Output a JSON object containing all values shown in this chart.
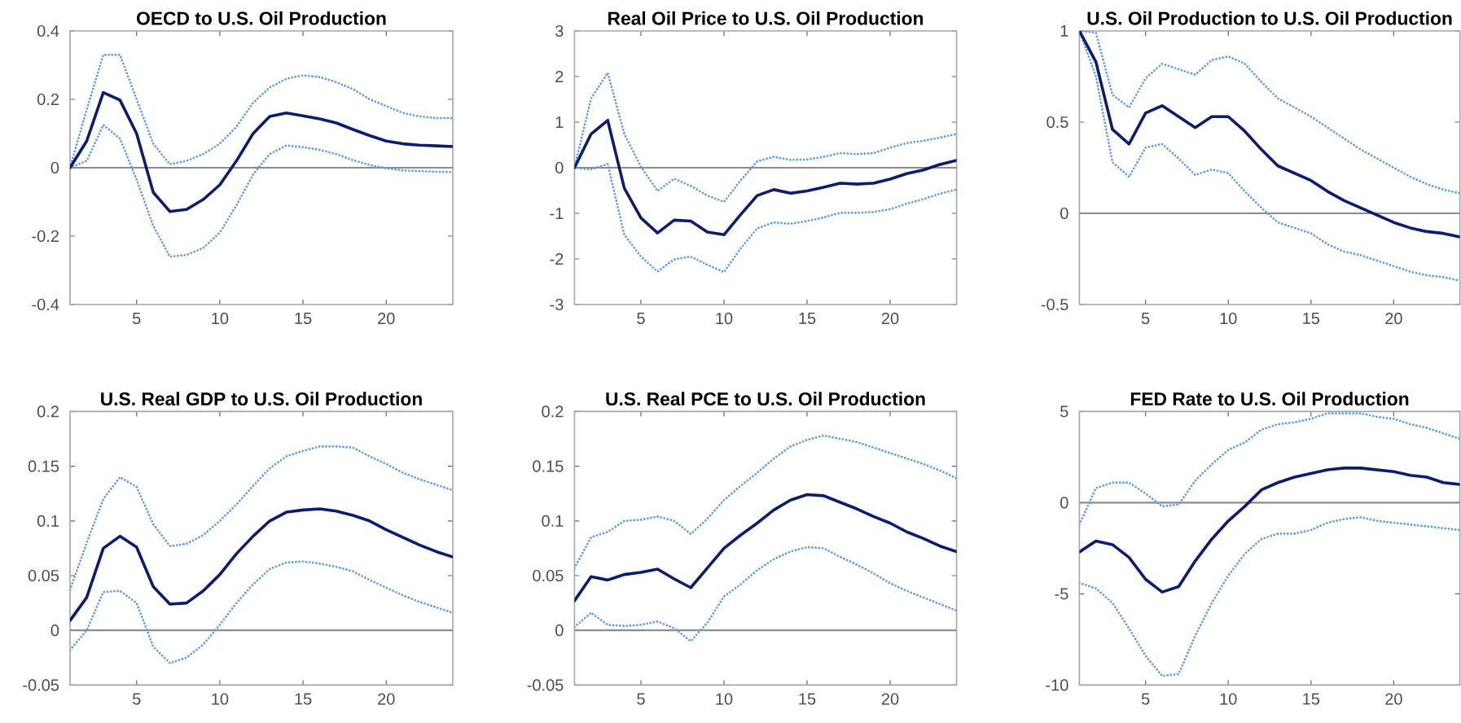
{
  "chart_data": [
    {
      "type": "line",
      "title": "OECD to U.S. Oil Production",
      "x": [
        1,
        2,
        3,
        4,
        5,
        6,
        7,
        8,
        9,
        10,
        11,
        12,
        13,
        14,
        15,
        16,
        17,
        18,
        19,
        20,
        21,
        22,
        23,
        24
      ],
      "xlim": [
        1,
        24
      ],
      "xticks": [
        5,
        10,
        15,
        20
      ],
      "ylim": [
        -0.4,
        0.4
      ],
      "yticks": [
        -0.4,
        -0.2,
        0,
        0.2,
        0.4
      ],
      "ref_lines": [
        {
          "axis": "y",
          "value": 0,
          "color": "#8c8c8c"
        }
      ],
      "series": [
        {
          "color": "#5b9bf0",
          "line_style": "dotted",
          "values": [
            0,
            0.17,
            0.33,
            0.33,
            0.2,
            0.07,
            0.01,
            0.02,
            0.04,
            0.07,
            0.12,
            0.19,
            0.235,
            0.26,
            0.27,
            0.265,
            0.25,
            0.23,
            0.2,
            0.18,
            0.16,
            0.15,
            0.145,
            0.145
          ]
        },
        {
          "color": "#5b9bf0",
          "line_style": "dotted",
          "values": [
            0,
            0.02,
            0.125,
            0.085,
            -0.035,
            -0.17,
            -0.26,
            -0.255,
            -0.235,
            -0.19,
            -0.11,
            -0.02,
            0.04,
            0.065,
            0.06,
            0.052,
            0.04,
            0.022,
            0.008,
            -0.002,
            -0.008,
            -0.01,
            -0.012,
            -0.013
          ]
        },
        {
          "color": "#0d1d6e",
          "line_style": "solid",
          "values": [
            0,
            0.078,
            0.22,
            0.198,
            0.1,
            -0.072,
            -0.128,
            -0.122,
            -0.093,
            -0.05,
            0.02,
            0.1,
            0.15,
            0.16,
            0.152,
            0.143,
            0.131,
            0.112,
            0.094,
            0.078,
            0.07,
            0.066,
            0.064,
            0.062
          ]
        }
      ]
    },
    {
      "type": "line",
      "title": "Real Oil Price to U.S. Oil Production",
      "x": [
        1,
        2,
        3,
        4,
        5,
        6,
        7,
        8,
        9,
        10,
        11,
        12,
        13,
        14,
        15,
        16,
        17,
        18,
        19,
        20,
        21,
        22,
        23,
        24
      ],
      "xlim": [
        1,
        24
      ],
      "xticks": [
        5,
        10,
        15,
        20
      ],
      "ylim": [
        -3,
        3
      ],
      "yticks": [
        -3,
        -2,
        -1,
        0,
        1,
        2,
        3
      ],
      "ref_lines": [
        {
          "axis": "y",
          "value": 0,
          "color": "#8c8c8c"
        }
      ],
      "series": [
        {
          "color": "#5b9bf0",
          "line_style": "dotted",
          "values": [
            0,
            1.52,
            2.08,
            0.74,
            0.02,
            -0.51,
            -0.24,
            -0.4,
            -0.61,
            -0.75,
            -0.28,
            0.14,
            0.24,
            0.17,
            0.18,
            0.24,
            0.32,
            0.3,
            0.32,
            0.44,
            0.54,
            0.59,
            0.66,
            0.74
          ]
        },
        {
          "color": "#5b9bf0",
          "line_style": "dotted",
          "values": [
            0,
            -0.04,
            0.08,
            -1.47,
            -1.95,
            -2.28,
            -2.01,
            -1.95,
            -2.13,
            -2.29,
            -1.77,
            -1.33,
            -1.2,
            -1.23,
            -1.17,
            -1.09,
            -0.99,
            -0.99,
            -0.97,
            -0.91,
            -0.79,
            -0.69,
            -0.57,
            -0.48
          ]
        },
        {
          "color": "#0d1d6e",
          "line_style": "solid",
          "values": [
            0,
            0.74,
            1.04,
            -0.45,
            -1.1,
            -1.43,
            -1.15,
            -1.17,
            -1.41,
            -1.47,
            -1.03,
            -0.61,
            -0.48,
            -0.56,
            -0.51,
            -0.43,
            -0.34,
            -0.36,
            -0.34,
            -0.25,
            -0.13,
            -0.05,
            0.07,
            0.16
          ]
        }
      ]
    },
    {
      "type": "line",
      "title": "U.S. Oil Production to U.S. Oil Production",
      "x": [
        1,
        2,
        3,
        4,
        5,
        6,
        7,
        8,
        9,
        10,
        11,
        12,
        13,
        14,
        15,
        16,
        17,
        18,
        19,
        20,
        21,
        22,
        23,
        24
      ],
      "xlim": [
        1,
        24
      ],
      "xticks": [
        5,
        10,
        15,
        20
      ],
      "ylim": [
        -0.5,
        1
      ],
      "yticks": [
        -0.5,
        0,
        0.5,
        1
      ],
      "ref_lines": [
        {
          "axis": "y",
          "value": 0,
          "color": "#8c8c8c"
        }
      ],
      "series": [
        {
          "color": "#5b9bf0",
          "line_style": "dotted",
          "values": [
            1,
            0.99,
            0.65,
            0.58,
            0.74,
            0.82,
            0.79,
            0.76,
            0.84,
            0.86,
            0.82,
            0.72,
            0.63,
            0.58,
            0.53,
            0.47,
            0.41,
            0.35,
            0.3,
            0.25,
            0.2,
            0.16,
            0.13,
            0.11
          ]
        },
        {
          "color": "#5b9bf0",
          "line_style": "dotted",
          "values": [
            1,
            0.75,
            0.28,
            0.2,
            0.36,
            0.38,
            0.3,
            0.21,
            0.24,
            0.22,
            0.12,
            0.03,
            -0.05,
            -0.08,
            -0.11,
            -0.17,
            -0.21,
            -0.23,
            -0.26,
            -0.29,
            -0.32,
            -0.34,
            -0.35,
            -0.37
          ]
        },
        {
          "color": "#0d1d6e",
          "line_style": "solid",
          "values": [
            1,
            0.83,
            0.46,
            0.38,
            0.55,
            0.59,
            0.53,
            0.47,
            0.53,
            0.53,
            0.45,
            0.35,
            0.26,
            0.22,
            0.18,
            0.12,
            0.07,
            0.03,
            -0.01,
            -0.05,
            -0.08,
            -0.1,
            -0.11,
            -0.13
          ]
        }
      ]
    },
    {
      "type": "line",
      "title": "U.S. Real GDP to U.S. Oil Production",
      "x": [
        1,
        2,
        3,
        4,
        5,
        6,
        7,
        8,
        9,
        10,
        11,
        12,
        13,
        14,
        15,
        16,
        17,
        18,
        19,
        20,
        21,
        22,
        23,
        24
      ],
      "xlim": [
        1,
        24
      ],
      "xticks": [
        5,
        10,
        15,
        20
      ],
      "ylim": [
        -0.05,
        0.2
      ],
      "yticks": [
        -0.05,
        0,
        0.05,
        0.1,
        0.15,
        0.2
      ],
      "ref_lines": [
        {
          "axis": "y",
          "value": 0,
          "color": "#8c8c8c"
        }
      ],
      "series": [
        {
          "color": "#5b9bf0",
          "line_style": "dotted",
          "values": [
            0.037,
            0.08,
            0.12,
            0.14,
            0.131,
            0.097,
            0.077,
            0.079,
            0.087,
            0.1,
            0.115,
            0.132,
            0.148,
            0.159,
            0.164,
            0.168,
            0.168,
            0.167,
            0.159,
            0.152,
            0.144,
            0.138,
            0.133,
            0.128
          ]
        },
        {
          "color": "#5b9bf0",
          "line_style": "dotted",
          "values": [
            -0.018,
            0.0,
            0.035,
            0.036,
            0.025,
            -0.015,
            -0.03,
            -0.025,
            -0.013,
            0.005,
            0.025,
            0.042,
            0.056,
            0.062,
            0.063,
            0.061,
            0.058,
            0.054,
            0.046,
            0.039,
            0.032,
            0.026,
            0.021,
            0.016
          ]
        },
        {
          "color": "#0d1d6e",
          "line_style": "solid",
          "values": [
            0.009,
            0.03,
            0.075,
            0.086,
            0.076,
            0.04,
            0.024,
            0.025,
            0.036,
            0.051,
            0.07,
            0.086,
            0.1,
            0.108,
            0.11,
            0.111,
            0.109,
            0.105,
            0.1,
            0.092,
            0.085,
            0.078,
            0.072,
            0.067
          ]
        }
      ]
    },
    {
      "type": "line",
      "title": "U.S. Real PCE to U.S. Oil Production",
      "x": [
        1,
        2,
        3,
        4,
        5,
        6,
        7,
        8,
        9,
        10,
        11,
        12,
        13,
        14,
        15,
        16,
        17,
        18,
        19,
        20,
        21,
        22,
        23,
        24
      ],
      "xlim": [
        1,
        24
      ],
      "xticks": [
        5,
        10,
        15,
        20
      ],
      "ylim": [
        -0.05,
        0.2
      ],
      "yticks": [
        -0.05,
        0,
        0.05,
        0.1,
        0.15,
        0.2
      ],
      "ref_lines": [
        {
          "axis": "y",
          "value": 0,
          "color": "#8c8c8c"
        }
      ],
      "series": [
        {
          "color": "#5b9bf0",
          "line_style": "dotted",
          "values": [
            0.057,
            0.085,
            0.09,
            0.1,
            0.101,
            0.104,
            0.1,
            0.088,
            0.102,
            0.119,
            0.132,
            0.144,
            0.157,
            0.168,
            0.174,
            0.178,
            0.175,
            0.172,
            0.167,
            0.162,
            0.157,
            0.152,
            0.146,
            0.139
          ]
        },
        {
          "color": "#5b9bf0",
          "line_style": "dotted",
          "values": [
            0.003,
            0.016,
            0.005,
            0.004,
            0.005,
            0.008,
            0.002,
            -0.01,
            0.007,
            0.031,
            0.042,
            0.055,
            0.065,
            0.072,
            0.076,
            0.075,
            0.067,
            0.06,
            0.052,
            0.043,
            0.036,
            0.03,
            0.024,
            0.018
          ]
        },
        {
          "color": "#0d1d6e",
          "line_style": "solid",
          "values": [
            0.027,
            0.049,
            0.046,
            0.051,
            0.053,
            0.056,
            0.047,
            0.039,
            0.057,
            0.075,
            0.087,
            0.098,
            0.11,
            0.119,
            0.124,
            0.123,
            0.117,
            0.111,
            0.104,
            0.098,
            0.09,
            0.084,
            0.077,
            0.072
          ]
        }
      ]
    },
    {
      "type": "line",
      "title": "FED Rate to U.S. Oil Production",
      "x": [
        1,
        2,
        3,
        4,
        5,
        6,
        7,
        8,
        9,
        10,
        11,
        12,
        13,
        14,
        15,
        16,
        17,
        18,
        19,
        20,
        21,
        22,
        23,
        24
      ],
      "xlim": [
        1,
        24
      ],
      "xticks": [
        5,
        10,
        15,
        20
      ],
      "ylim": [
        -10,
        5
      ],
      "yticks": [
        -10,
        -5,
        0,
        5
      ],
      "ref_lines": [
        {
          "axis": "y",
          "value": 0,
          "color": "#8c8c8c"
        }
      ],
      "series": [
        {
          "color": "#5b9bf0",
          "line_style": "dotted",
          "values": [
            -1.2,
            0.8,
            1.1,
            1.1,
            0.5,
            -0.2,
            -0.1,
            1.2,
            2.1,
            2.9,
            3.3,
            4.0,
            4.3,
            4.4,
            4.6,
            4.9,
            4.9,
            4.9,
            4.7,
            4.6,
            4.3,
            4.1,
            3.8,
            3.5
          ]
        },
        {
          "color": "#5b9bf0",
          "line_style": "dotted",
          "values": [
            -4.4,
            -4.7,
            -5.5,
            -6.9,
            -8.4,
            -9.5,
            -9.4,
            -7.3,
            -5.5,
            -4.0,
            -2.8,
            -2.0,
            -1.7,
            -1.7,
            -1.5,
            -1.1,
            -0.9,
            -0.8,
            -1.0,
            -1.1,
            -1.2,
            -1.3,
            -1.4,
            -1.5
          ]
        },
        {
          "color": "#0d1d6e",
          "line_style": "solid",
          "values": [
            -2.7,
            -2.1,
            -2.3,
            -3.0,
            -4.2,
            -4.9,
            -4.6,
            -3.2,
            -2.0,
            -1.0,
            -0.2,
            0.7,
            1.1,
            1.4,
            1.6,
            1.8,
            1.9,
            1.9,
            1.8,
            1.7,
            1.5,
            1.4,
            1.1,
            1.0
          ]
        }
      ]
    }
  ]
}
